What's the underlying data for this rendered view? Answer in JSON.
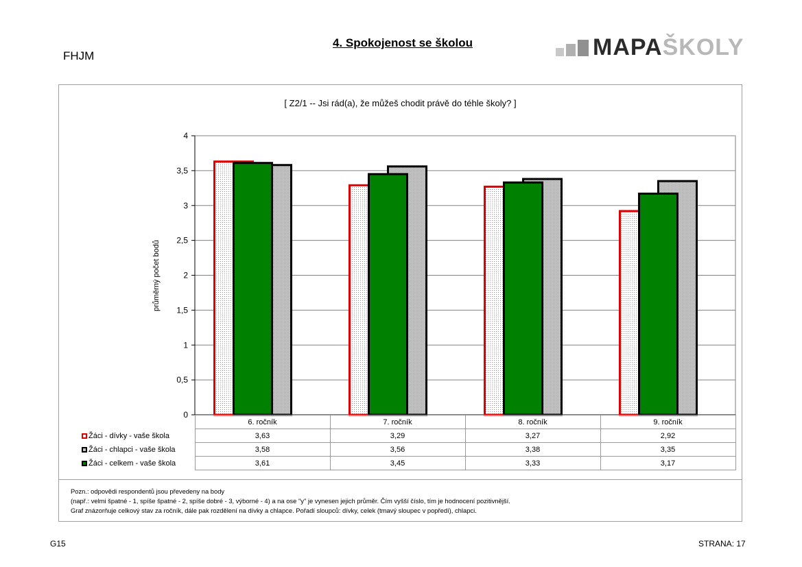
{
  "header": {
    "school_code": "FHJM",
    "page_title": "4. Spokojenost se školou",
    "logo_dark": "MAPA",
    "logo_light": "ŠKOLY"
  },
  "chart_data": {
    "type": "bar",
    "title": "[ Z2/1 -- Jsi rád(a), že můžeš chodit právě do téhle školy? ]",
    "ylabel": "průměrný počet bodů",
    "xlabel": "",
    "ylim": [
      0,
      4
    ],
    "yticks": [
      "0",
      "0,5",
      "1",
      "1,5",
      "2",
      "2,5",
      "3",
      "3,5",
      "4"
    ],
    "grid": true,
    "categories": [
      "6. ročník",
      "7. ročník",
      "8. ročník",
      "9. ročník"
    ],
    "series": [
      {
        "name": "Žáci - dívky - vaše škola",
        "values": [
          3.63,
          3.29,
          3.27,
          2.92
        ],
        "labels": [
          "3,63",
          "3,29",
          "3,27",
          "2,92"
        ],
        "color": "#e00000"
      },
      {
        "name": "Žáci - chlapci - vaše škola",
        "values": [
          3.58,
          3.56,
          3.38,
          3.35
        ],
        "labels": [
          "3,58",
          "3,56",
          "3,38",
          "3,35"
        ],
        "color": "#000000"
      },
      {
        "name": "Žáci - celkem - vaše škola",
        "values": [
          3.61,
          3.45,
          3.33,
          3.17
        ],
        "labels": [
          "3,61",
          "3,45",
          "3,33",
          "3,17"
        ],
        "color": "#008000"
      }
    ],
    "legend": "data table below chart"
  },
  "notes": [
    "Pozn.: odpovědi respondentů jsou převedeny na body",
    "(např.: velmi špatné - 1, spíše špatné - 2, spíše dobré - 3, výborné - 4) a na ose \"y\" je vynesen jejich průměr. Čím vyšší číslo, tím je hodnocení pozitivnější.",
    "Graf znázorňuje celkový stav za ročník, dále pak rozdělení na dívky a chlapce. Pořadí sloupců: dívky, celek (tmavý sloupec v popředí), chlapci."
  ],
  "footer": {
    "left": "G15",
    "right": "STRANA: 17"
  }
}
